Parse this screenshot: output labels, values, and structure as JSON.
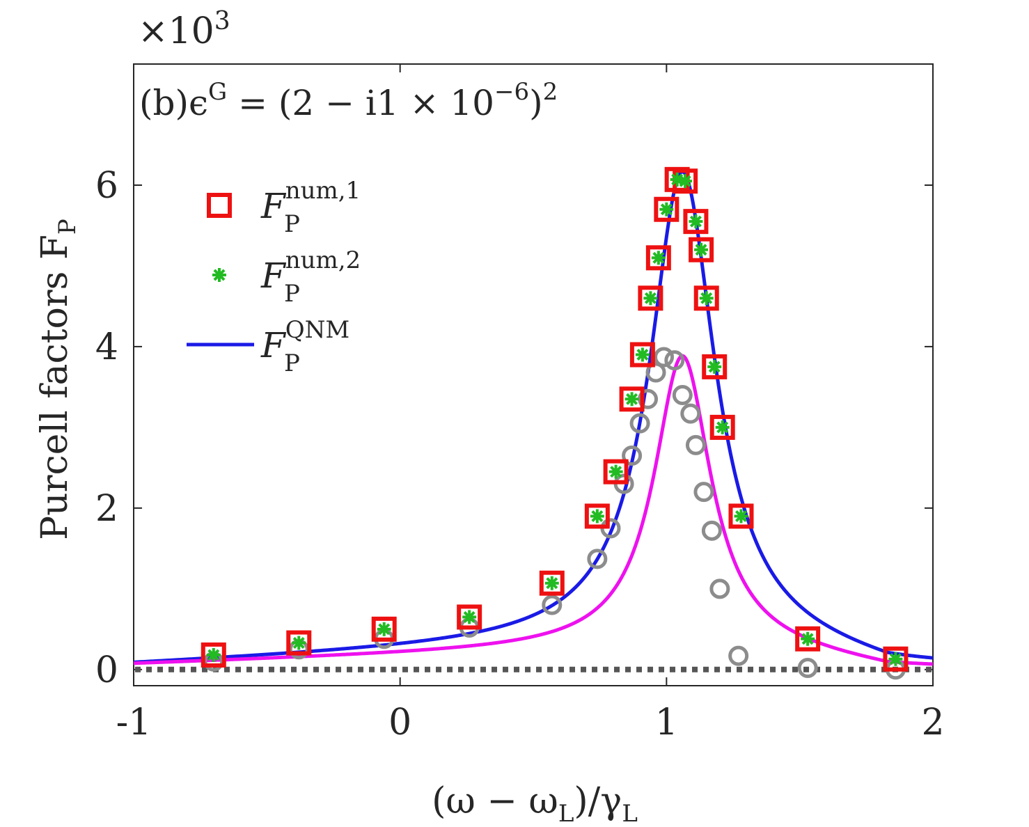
{
  "chart_data": {
    "type": "scatter",
    "multiplier": "×10³",
    "multiplier_base": "×10",
    "multiplier_exp": "3",
    "annotation": {
      "prefix": "(b)ϵ",
      "sup": "G",
      "body": " = (2 − i1 × 10",
      "exp": "−6",
      "close": ")",
      "power": "2"
    },
    "xlabel": "(ω − ωL)/γL",
    "xlabel_parts": {
      "open": "(ω − ω",
      "sub1": "L",
      "mid": ")/γ",
      "sub2": "L"
    },
    "ylabel": "Purcell factors FP",
    "ylabel_parts": {
      "text": "Purcell factors F",
      "sub": "P"
    },
    "xlim": [
      -1,
      2
    ],
    "ylim": [
      -0.2,
      7.5
    ],
    "xticks": [
      {
        "v": -1,
        "label": "-1"
      },
      {
        "v": 0,
        "label": "0"
      },
      {
        "v": 1,
        "label": "1"
      },
      {
        "v": 2,
        "label": "2"
      }
    ],
    "yticks": [
      {
        "v": 0,
        "label": "0"
      },
      {
        "v": 2,
        "label": "2"
      },
      {
        "v": 4,
        "label": "4"
      },
      {
        "v": 6,
        "label": "6"
      }
    ],
    "legend": [
      {
        "marker": "square",
        "color": "#ee1111",
        "base": "F",
        "sub": "P",
        "sup": "num,1"
      },
      {
        "marker": "asterisk",
        "color": "#22bb22",
        "base": "F",
        "sub": "P",
        "sup": "num,2"
      },
      {
        "marker": "line",
        "color": "#1a1ae6",
        "base": "F",
        "sub": "P",
        "sup": "QNM"
      }
    ],
    "series": [
      {
        "name": "F_P^num,1",
        "style": "square",
        "color": "#ee1111",
        "x": [
          -0.7,
          -0.38,
          -0.06,
          0.26,
          0.57,
          0.74,
          0.81,
          0.87,
          0.91,
          0.94,
          0.97,
          1.0,
          1.04,
          1.07,
          1.11,
          1.13,
          1.15,
          1.18,
          1.21,
          1.28,
          1.53,
          1.86
        ],
        "y": [
          0.18,
          0.33,
          0.5,
          0.65,
          1.07,
          1.9,
          2.45,
          3.35,
          3.9,
          4.6,
          5.1,
          5.7,
          6.07,
          6.05,
          5.55,
          5.2,
          4.6,
          3.75,
          3.0,
          1.9,
          0.38,
          0.13
        ]
      },
      {
        "name": "F_P^num,2",
        "style": "asterisk",
        "color": "#22bb22",
        "x": [
          -0.7,
          -0.38,
          -0.06,
          0.26,
          0.57,
          0.74,
          0.81,
          0.87,
          0.91,
          0.94,
          0.97,
          1.0,
          1.04,
          1.07,
          1.11,
          1.13,
          1.15,
          1.18,
          1.21,
          1.28,
          1.53,
          1.86
        ],
        "y": [
          0.18,
          0.33,
          0.5,
          0.65,
          1.07,
          1.9,
          2.45,
          3.35,
          3.9,
          4.6,
          5.1,
          5.7,
          6.07,
          6.05,
          5.55,
          5.2,
          4.6,
          3.75,
          3.0,
          1.9,
          0.38,
          0.13
        ]
      },
      {
        "name": "gray circles",
        "style": "circle",
        "color": "#8c8c8c",
        "x": [
          -0.7,
          -0.38,
          -0.06,
          0.26,
          0.57,
          0.74,
          0.79,
          0.84,
          0.87,
          0.9,
          0.93,
          0.96,
          0.99,
          1.03,
          1.06,
          1.09,
          1.11,
          1.14,
          1.17,
          1.2,
          1.27,
          1.53,
          1.86
        ],
        "y": [
          0.1,
          0.25,
          0.38,
          0.52,
          0.8,
          1.37,
          1.75,
          2.3,
          2.65,
          3.05,
          3.35,
          3.68,
          3.87,
          3.83,
          3.4,
          3.17,
          2.78,
          2.2,
          1.72,
          1.0,
          0.17,
          0.02,
          0.0
        ]
      },
      {
        "name": "F_P^QNM",
        "style": "line",
        "color": "#1a1ae6",
        "model": {
          "amp": 5.8,
          "center": 1.06,
          "halfwidth": 0.15,
          "baseline": 0.3,
          "slope": 0.25
        }
      },
      {
        "name": "magenta curve",
        "style": "line",
        "color": "#ee11ee",
        "model": {
          "amp": 3.6,
          "center": 1.06,
          "halfwidth": 0.13,
          "baseline": 0.25,
          "slope": 0.18
        }
      },
      {
        "name": "zero reference",
        "style": "dotted",
        "color": "#555555",
        "y": 0
      }
    ]
  }
}
